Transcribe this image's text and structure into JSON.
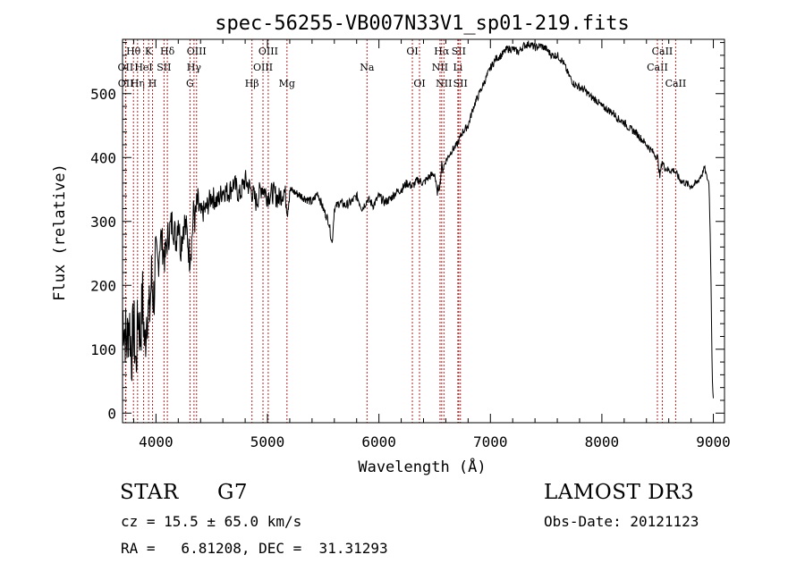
{
  "chart_data": {
    "type": "line",
    "title": "spec-56255-VB007N33V1_sp01-219.fits",
    "xlabel": "Wavelength (Å)",
    "ylabel": "Flux (relative)",
    "xlim": [
      3700,
      9100
    ],
    "ylim": [
      -15,
      585
    ],
    "xticks": [
      4000,
      5000,
      6000,
      7000,
      8000,
      9000
    ],
    "yticks": [
      0,
      100,
      200,
      300,
      400,
      500
    ],
    "series": [
      {
        "name": "flux",
        "x": [
          3700,
          3720,
          3740,
          3760,
          3780,
          3800,
          3820,
          3840,
          3860,
          3880,
          3900,
          3920,
          3940,
          3960,
          3980,
          4000,
          4020,
          4040,
          4060,
          4080,
          4100,
          4120,
          4150,
          4180,
          4200,
          4220,
          4250,
          4280,
          4300,
          4320,
          4340,
          4350,
          4370,
          4400,
          4450,
          4500,
          4550,
          4600,
          4650,
          4700,
          4750,
          4800,
          4850,
          4900,
          4950,
          5000,
          5050,
          5100,
          5150,
          5180,
          5200,
          5250,
          5300,
          5350,
          5400,
          5450,
          5500,
          5550,
          5580,
          5600,
          5650,
          5700,
          5750,
          5800,
          5850,
          5900,
          5950,
          6000,
          6050,
          6100,
          6150,
          6200,
          6250,
          6300,
          6350,
          6400,
          6450,
          6500,
          6520,
          6550,
          6563,
          6570,
          6600,
          6650,
          6700,
          6750,
          6800,
          6850,
          6900,
          6950,
          7000,
          7050,
          7100,
          7150,
          7200,
          7250,
          7300,
          7350,
          7400,
          7450,
          7500,
          7550,
          7600,
          7650,
          7700,
          7750,
          7800,
          7850,
          7900,
          7950,
          8000,
          8050,
          8100,
          8150,
          8200,
          8250,
          8300,
          8350,
          8400,
          8450,
          8500,
          8520,
          8540,
          8560,
          8600,
          8650,
          8700,
          8750,
          8800,
          8850,
          8900,
          8920,
          8940,
          8960,
          8970,
          8980,
          8990,
          9000
        ],
        "values": [
          160,
          130,
          110,
          150,
          90,
          140,
          70,
          160,
          120,
          180,
          100,
          170,
          150,
          210,
          180,
          250,
          230,
          280,
          260,
          240,
          270,
          285,
          300,
          270,
          310,
          260,
          300,
          280,
          245,
          270,
          320,
          300,
          330,
          310,
          320,
          340,
          330,
          350,
          345,
          360,
          340,
          365,
          350,
          330,
          355,
          340,
          345,
          335,
          350,
          320,
          350,
          345,
          340,
          335,
          330,
          345,
          320,
          300,
          265,
          320,
          330,
          325,
          330,
          340,
          320,
          335,
          325,
          340,
          330,
          335,
          345,
          350,
          360,
          355,
          365,
          360,
          370,
          375,
          345,
          360,
          390,
          380,
          395,
          410,
          420,
          440,
          450,
          480,
          500,
          520,
          540,
          555,
          560,
          570,
          570,
          565,
          575,
          578,
          572,
          575,
          570,
          560,
          560,
          550,
          530,
          515,
          510,
          505,
          495,
          490,
          480,
          475,
          470,
          460,
          455,
          445,
          440,
          430,
          420,
          410,
          400,
          370,
          395,
          385,
          380,
          380,
          365,
          360,
          355,
          360,
          375,
          385,
          370,
          360,
          300,
          200,
          60,
          20
        ]
      }
    ],
    "lines": [
      {
        "name": "Hθ",
        "x": 3798,
        "row": 1,
        "side": "top"
      },
      {
        "name": "OII",
        "x": 3727,
        "row": 2,
        "side": "top"
      },
      {
        "name": "OII",
        "x": 3729,
        "row": 3,
        "side": "top"
      },
      {
        "name": "Hη",
        "x": 3835,
        "row": 3,
        "side": "top"
      },
      {
        "name": "HeI",
        "x": 3889,
        "row": 2,
        "side": "top"
      },
      {
        "name": "K",
        "x": 3934,
        "row": 1,
        "side": "top"
      },
      {
        "name": "H",
        "x": 3969,
        "row": 3,
        "side": "top"
      },
      {
        "name": "SII",
        "x": 4072,
        "row": 2,
        "side": "top"
      },
      {
        "name": "Hδ",
        "x": 4102,
        "row": 1,
        "side": "top"
      },
      {
        "name": "Hγ",
        "x": 4341,
        "row": 2,
        "side": "top"
      },
      {
        "name": "G",
        "x": 4305,
        "row": 3,
        "side": "top"
      },
      {
        "name": "OIII",
        "x": 4364,
        "row": 1,
        "side": "top"
      },
      {
        "name": "Hβ",
        "x": 4861,
        "row": 3,
        "side": "top"
      },
      {
        "name": "OIII",
        "x": 4960,
        "row": 2,
        "side": "top"
      },
      {
        "name": "OIII",
        "x": 5007,
        "row": 1,
        "side": "top"
      },
      {
        "name": "Mg",
        "x": 5175,
        "row": 3,
        "side": "top"
      },
      {
        "name": "Na",
        "x": 5893,
        "row": 2,
        "side": "top"
      },
      {
        "name": "OI",
        "x": 6300,
        "row": 1,
        "side": "top"
      },
      {
        "name": "OI",
        "x": 6364,
        "row": 3,
        "side": "top"
      },
      {
        "name": "NII",
        "x": 6548,
        "row": 2,
        "side": "top"
      },
      {
        "name": "Hα",
        "x": 6563,
        "row": 1,
        "side": "top"
      },
      {
        "name": "NII",
        "x": 6583,
        "row": 3,
        "side": "top"
      },
      {
        "name": "Li",
        "x": 6708,
        "row": 2,
        "side": "top"
      },
      {
        "name": "SII",
        "x": 6716,
        "row": 1,
        "side": "top"
      },
      {
        "name": "SII",
        "x": 6731,
        "row": 3,
        "side": "top"
      },
      {
        "name": "CaII",
        "x": 8498,
        "row": 2,
        "side": "top"
      },
      {
        "name": "CaII",
        "x": 8542,
        "row": 1,
        "side": "top"
      },
      {
        "name": "CaII",
        "x": 8662,
        "row": 3,
        "side": "top"
      }
    ],
    "grid": false
  },
  "info": {
    "object_class": "STAR",
    "subclass": "G7",
    "survey": "LAMOST DR3",
    "redshift": "cz = 15.5 ± 65.0 km/s",
    "obs_date": "Obs-Date: 20121123",
    "coords": "RA =   6.81208, DEC =  31.31293"
  }
}
